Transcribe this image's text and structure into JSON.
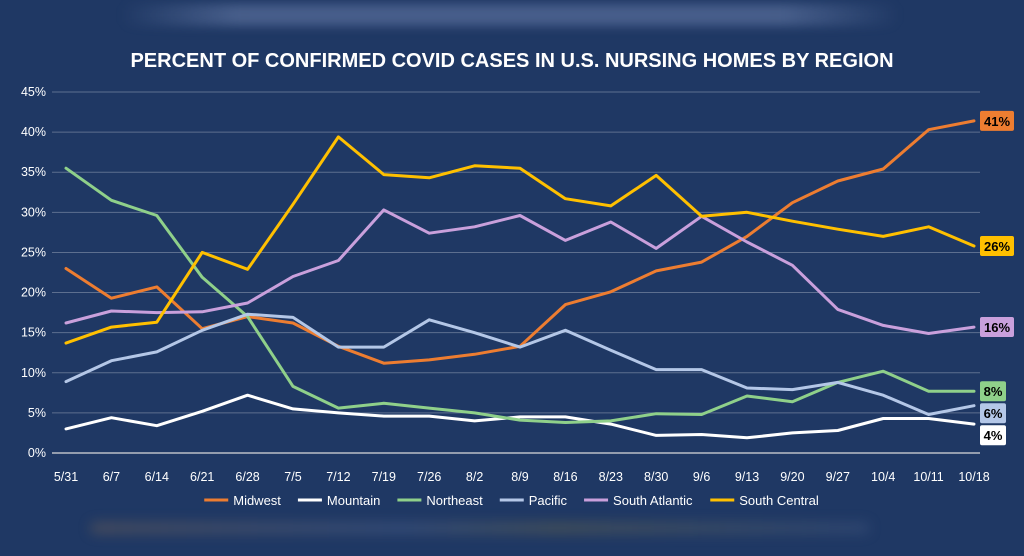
{
  "background": "#1f3864",
  "chart_data": {
    "type": "line",
    "title": "PERCENT OF CONFIRMED COVID CASES IN U.S. NURSING HOMES BY REGION",
    "xlabel": "",
    "ylabel": "",
    "ylim": [
      0,
      45
    ],
    "y_ticks": [
      "0%",
      "5%",
      "10%",
      "15%",
      "20%",
      "25%",
      "30%",
      "35%",
      "40%",
      "45%"
    ],
    "grid": "horizontal",
    "legend_position": "bottom",
    "x": [
      "5/31",
      "6/7",
      "6/14",
      "6/21",
      "6/28",
      "7/5",
      "7/12",
      "7/19",
      "7/26",
      "8/2",
      "8/9",
      "8/16",
      "8/23",
      "8/30",
      "9/6",
      "9/13",
      "9/20",
      "9/27",
      "10/4",
      "10/11",
      "10/18"
    ],
    "series": [
      {
        "name": "Midwest",
        "color": "#ed7d31",
        "values": [
          23,
          19.3,
          20.7,
          15.5,
          17,
          16.2,
          13.3,
          11.2,
          11.6,
          12.3,
          13.3,
          18.5,
          20.1,
          22.7,
          23.8,
          27,
          31.2,
          33.9,
          35.4,
          40.3,
          41.4
        ],
        "end_label": "41%",
        "end_label_bg": "#ed7d31",
        "end_label_fg": "#000000"
      },
      {
        "name": "Mountain",
        "color": "#ffffff",
        "values": [
          3,
          4.4,
          3.4,
          5.2,
          7.2,
          5.5,
          5,
          4.6,
          4.6,
          4,
          4.5,
          4.5,
          3.6,
          2.2,
          2.3,
          1.9,
          2.5,
          2.8,
          4.3,
          4.3,
          3.6
        ],
        "end_label": "4%",
        "end_label_bg": "#ffffff",
        "end_label_fg": "#000000"
      },
      {
        "name": "Northeast",
        "color": "#8fd08a",
        "values": [
          35.5,
          31.5,
          29.6,
          21.9,
          17,
          8.3,
          5.6,
          6.2,
          5.6,
          5,
          4.1,
          3.8,
          4,
          4.9,
          4.8,
          7.1,
          6.4,
          8.8,
          10.2,
          7.7,
          7.7
        ],
        "end_label": "8%",
        "end_label_bg": "#8fd08a",
        "end_label_fg": "#000000"
      },
      {
        "name": "Pacific",
        "color": "#b4c7e7",
        "values": [
          8.9,
          11.5,
          12.6,
          15.3,
          17.3,
          16.9,
          13.2,
          13.2,
          16.6,
          15,
          13.2,
          15.3,
          12.8,
          10.4,
          10.4,
          8.1,
          7.9,
          8.8,
          7.2,
          4.8,
          5.9
        ],
        "end_label": "6%",
        "end_label_bg": "#b4c7e7",
        "end_label_fg": "#000000"
      },
      {
        "name": "South Atlantic",
        "color": "#c9a0dc",
        "values": [
          16.2,
          17.7,
          17.5,
          17.6,
          18.7,
          22,
          24,
          30.3,
          27.4,
          28.2,
          29.6,
          26.5,
          28.8,
          25.5,
          29.5,
          26.3,
          23.4,
          17.9,
          15.9,
          14.9,
          15.7
        ],
        "end_label": "16%",
        "end_label_bg": "#c9a0dc",
        "end_label_fg": "#000000"
      },
      {
        "name": "South Central",
        "color": "#ffc000",
        "values": [
          13.7,
          15.7,
          16.3,
          25,
          22.9,
          31,
          39.4,
          34.7,
          34.3,
          35.8,
          35.5,
          31.7,
          30.8,
          34.6,
          29.5,
          30,
          28.9,
          27.9,
          27,
          28.2,
          25.8
        ],
        "end_label": "26%",
        "end_label_bg": "#ffc000",
        "end_label_fg": "#000000"
      }
    ]
  }
}
